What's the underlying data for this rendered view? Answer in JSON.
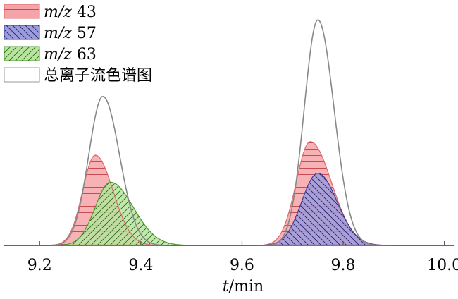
{
  "chart_data": {
    "type": "area",
    "title": "",
    "xlabel_var": "t",
    "xlabel_unit": "/min",
    "ylabel": "",
    "xlim": [
      9.13,
      10.02
    ],
    "ylim": [
      0,
      1.0
    ],
    "x_ticks": [
      "9.2",
      "9.4",
      "9.6",
      "9.8",
      "10.0"
    ],
    "legend_position": "top-left",
    "series": [
      {
        "name_var": "m/z",
        "name_num": " 43",
        "fill": "#f4a4a8",
        "edge": "#e0686e",
        "hatch": "horizontal",
        "peaks": [
          {
            "center": 9.31,
            "height": 0.4,
            "sigma_left": 0.025,
            "sigma_right": 0.035
          },
          {
            "center": 9.735,
            "height": 0.46,
            "sigma_left": 0.028,
            "sigma_right": 0.042
          }
        ]
      },
      {
        "name_var": "m/z",
        "name_num": " 57",
        "fill": "#9c9cdc",
        "edge": "#3c3ca0",
        "hatch": "diagonal-back",
        "peaks": [
          {
            "center": 9.75,
            "height": 0.32,
            "sigma_left": 0.032,
            "sigma_right": 0.038
          }
        ]
      },
      {
        "name_var": "m/z",
        "name_num": " 63",
        "fill": "#b8e4a0",
        "edge": "#4a9a30",
        "hatch": "diagonal-forward",
        "peaks": [
          {
            "center": 9.34,
            "height": 0.28,
            "sigma_left": 0.03,
            "sigma_right": 0.045
          }
        ]
      },
      {
        "name_text": "总离子流色谱图",
        "fill": "none",
        "edge": "#888888",
        "hatch": "none",
        "peaks": [
          {
            "center": 9.325,
            "height": 0.66,
            "sigma_left": 0.028,
            "sigma_right": 0.033
          },
          {
            "center": 9.75,
            "height": 1.0,
            "sigma_left": 0.027,
            "sigma_right": 0.032
          }
        ]
      }
    ]
  }
}
